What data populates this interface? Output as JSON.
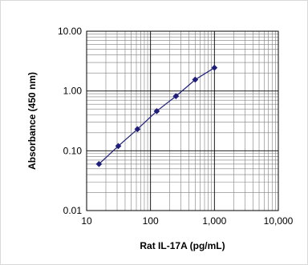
{
  "chart_data": {
    "type": "line",
    "title": "",
    "xlabel": "Rat IL-17A (pg/mL)",
    "ylabel": "Absorbance (450 nm)",
    "x_scale": "log",
    "y_scale": "log",
    "xlim": [
      10,
      10000
    ],
    "ylim": [
      0.01,
      10
    ],
    "x_tick_labels": [
      "10",
      "100",
      "1,000",
      "10,000"
    ],
    "y_tick_labels": [
      "0.01",
      "0.10",
      "1.00",
      "10.00"
    ],
    "x_ticks": [
      10,
      100,
      1000,
      10000
    ],
    "y_ticks": [
      0.01,
      0.1,
      1,
      10
    ],
    "grid": true,
    "legend": "none",
    "series": [
      {
        "x": [
          15.6,
          31.3,
          62.5,
          125,
          250,
          500,
          1000
        ],
        "y": [
          0.06,
          0.12,
          0.23,
          0.46,
          0.82,
          1.55,
          2.45
        ],
        "color": "#1f1f7a",
        "marker": "diamond"
      }
    ]
  }
}
